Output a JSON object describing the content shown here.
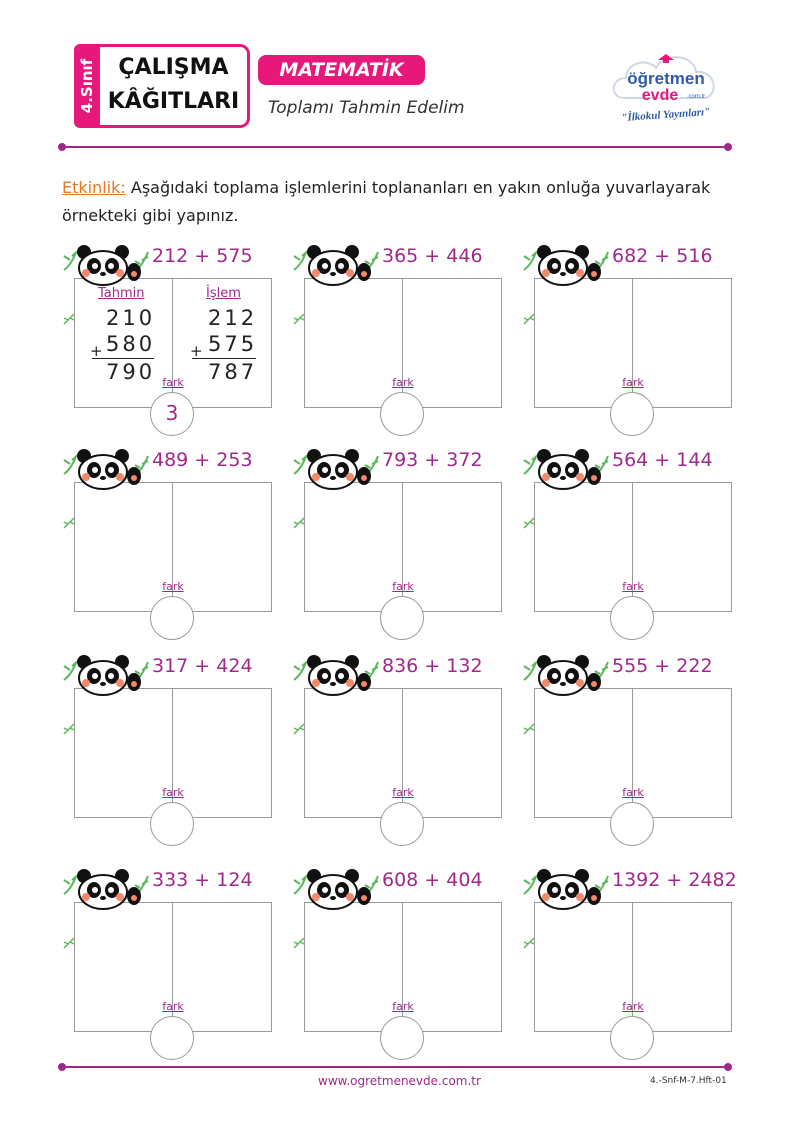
{
  "header": {
    "grade": "4.Sınıf",
    "title_line1": "ÇALIŞMA",
    "title_line2": "KÂĞITLARI",
    "subject": "MATEMATİK",
    "subtitle": "Toplamı Tahmin Edelim"
  },
  "logo": {
    "brand_top": "öğretmen",
    "brand_bottom": "evde",
    "domain": ".com.tr",
    "tagline": "\"İlkokul Yayınları\""
  },
  "instruction": {
    "lead": "Etkinlik:",
    "text": " Aşağıdaki toplama işlemlerini toplananları en yakın onluğa yuvarlayarak örnekteki gibi yapınız."
  },
  "example": {
    "estimate_label": "Tahmin",
    "operation_label": "İşlem",
    "estimate_a": "210",
    "estimate_b": "580",
    "estimate_sum": "790",
    "exact_a": "212",
    "exact_b": "575",
    "exact_sum": "787",
    "plus": "+",
    "difference": "3"
  },
  "fark_label": "fark",
  "problems": [
    "212 + 575",
    "365 + 446",
    "682 + 516",
    "489 + 253",
    "793 + 372",
    "564 + 144",
    "317 + 424",
    "836 + 132",
    "555 + 222",
    "333 + 124",
    "608 + 404",
    "1392 + 2482"
  ],
  "footer": {
    "url": "www.ogretmenevde.com.tr",
    "code": "4.-Snf-M-7.Hft-01"
  },
  "colors": {
    "magenta": "#e6197b",
    "purple": "#a0288c",
    "orange": "#e87722",
    "green": "#5cb85c"
  }
}
